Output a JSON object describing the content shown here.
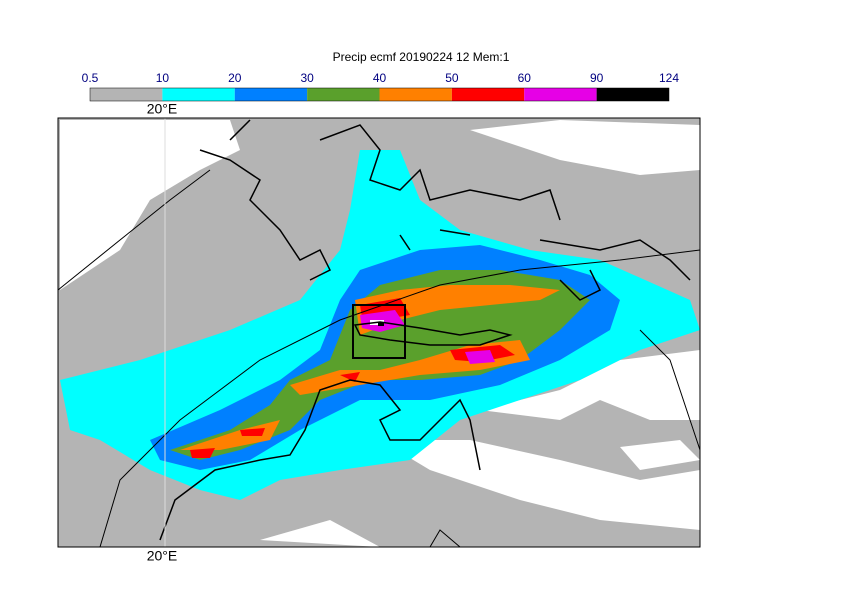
{
  "title": "Precip ecmf 20190224 12 Mem:1",
  "colorbar": {
    "levels": [
      0.5,
      10,
      20,
      30,
      40,
      50,
      60,
      90,
      124
    ],
    "colors": [
      "#b4b4b4",
      "#00ffff",
      "#0080ff",
      "#5aa02c",
      "#ff8000",
      "#ff0000",
      "#e600e6",
      "#000000"
    ]
  },
  "map": {
    "top_label": "20°E",
    "bottom_label": "20°E"
  }
}
